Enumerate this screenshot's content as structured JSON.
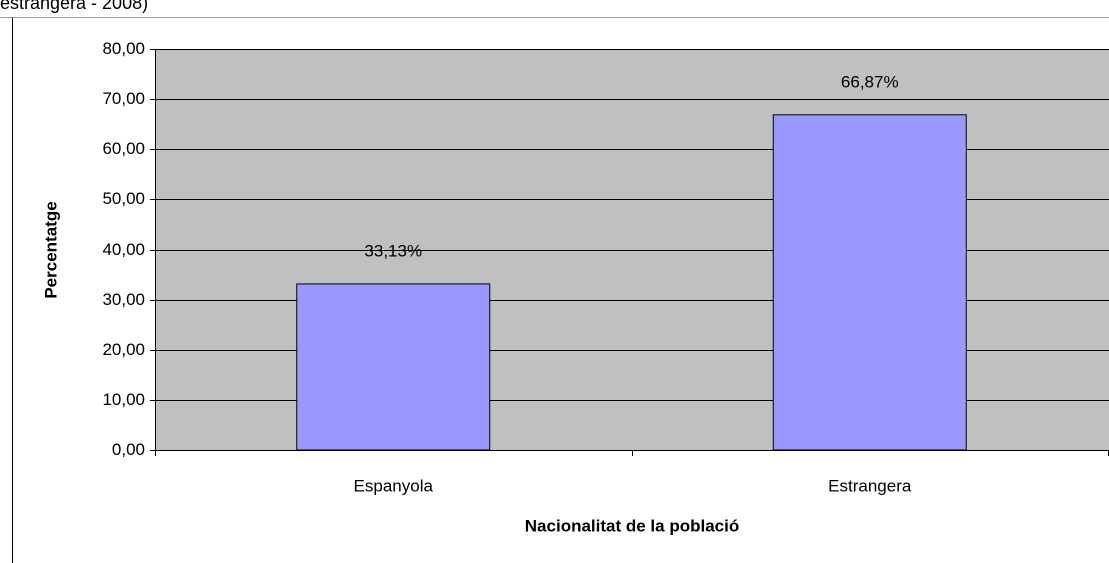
{
  "chart_data": {
    "type": "bar",
    "title": "estrangera - 2008)",
    "xlabel": "Nacionalitat de la població",
    "ylabel": "Percentatge",
    "categories": [
      "Espanyola",
      "Estrangera"
    ],
    "values": [
      33.13,
      66.87
    ],
    "value_labels": [
      "33,13%",
      "66,87%"
    ],
    "color": "#9999ff",
    "ylim": [
      0,
      80
    ],
    "yticks": [
      {
        "value": 0,
        "label": "0,00"
      },
      {
        "value": 10,
        "label": "10,00"
      },
      {
        "value": 20,
        "label": "20,00"
      },
      {
        "value": 30,
        "label": "30,00"
      },
      {
        "value": 40,
        "label": "40,00"
      },
      {
        "value": 50,
        "label": "50,00"
      },
      {
        "value": 60,
        "label": "60,00"
      },
      {
        "value": 70,
        "label": "70,00"
      },
      {
        "value": 80,
        "label": "80,00"
      }
    ],
    "grid": true
  }
}
